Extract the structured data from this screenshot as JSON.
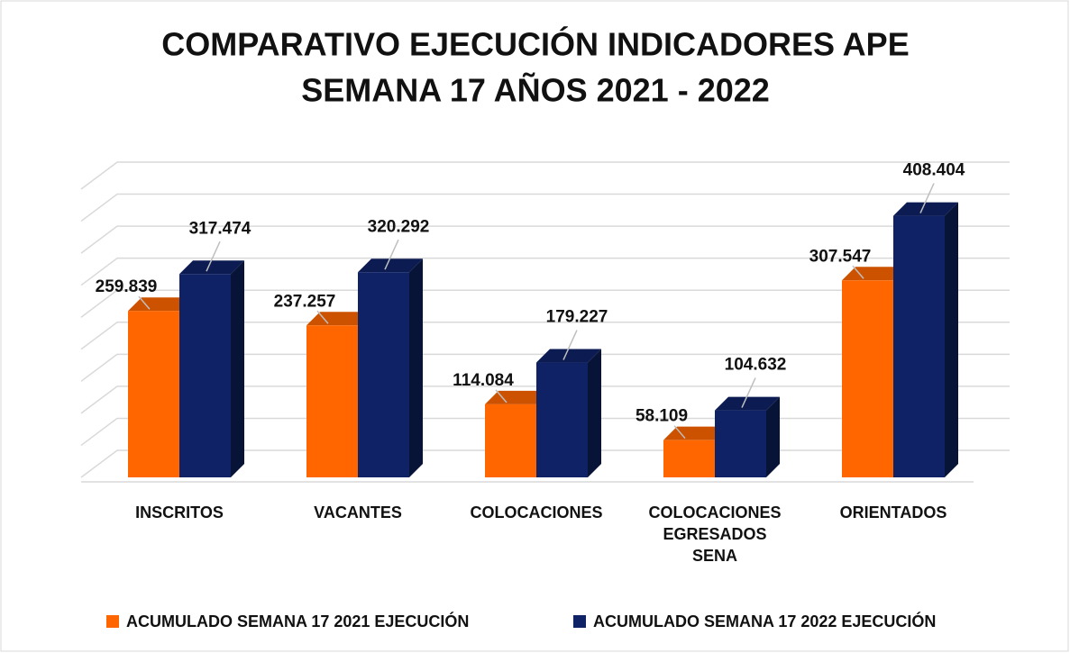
{
  "chart_data": {
    "type": "bar3d",
    "title": [
      "COMPARATIVO EJECUCIÓN INDICADORES APE",
      "SEMANA 17  AÑOS 2021 - 2022"
    ],
    "categories": [
      "INSCRITOS",
      "VACANTES",
      "COLOCACIONES",
      "COLOCACIONES EGRESADOS SENA",
      "ORIENTADOS"
    ],
    "series": [
      {
        "name": "ACUMULADO SEMANA 17 2021 EJECUCIÓN",
        "color": "#ff6600",
        "values": [
          259839,
          237257,
          114084,
          58109,
          307547
        ],
        "value_labels": [
          "259.839",
          "237.257",
          "114.084",
          "58.109",
          "307.547"
        ]
      },
      {
        "name": "ACUMULADO SEMANA 17 2022 EJECUCIÓN",
        "color": "#0f2266",
        "values": [
          317474,
          320292,
          179227,
          104632,
          408404
        ],
        "value_labels": [
          "317.474",
          "320.292",
          "179.227",
          "104.632",
          "408.404"
        ]
      }
    ],
    "ylim": [
      0,
      450000
    ],
    "yticks": [
      0,
      50000,
      100000,
      150000,
      200000,
      250000,
      300000,
      350000,
      400000,
      450000
    ],
    "grid": true,
    "legend": "bottom"
  }
}
